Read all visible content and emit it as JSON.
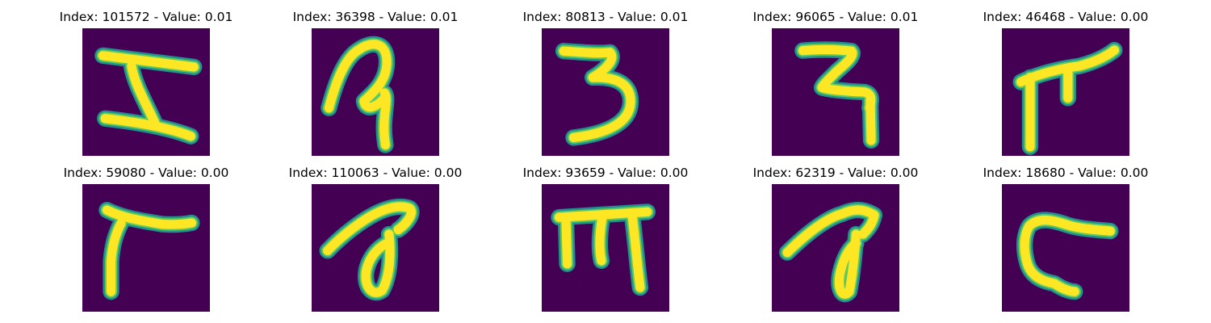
{
  "figure": {
    "panels": [
      {
        "index_label": "Index: 101572 - Value: 0.01",
        "index": 101572,
        "value": 0.01,
        "glyph": "glyph-1"
      },
      {
        "index_label": "Index: 36398 - Value: 0.01",
        "index": 36398,
        "value": 0.01,
        "glyph": "glyph-2"
      },
      {
        "index_label": "Index: 80813 - Value: 0.01",
        "index": 80813,
        "value": 0.01,
        "glyph": "glyph-3"
      },
      {
        "index_label": "Index: 96065 - Value: 0.01",
        "index": 96065,
        "value": 0.01,
        "glyph": "glyph-4"
      },
      {
        "index_label": "Index: 46468 - Value: 0.00",
        "index": 46468,
        "value": 0.0,
        "glyph": "glyph-5"
      },
      {
        "index_label": "Index: 59080 - Value: 0.00",
        "index": 59080,
        "value": 0.0,
        "glyph": "glyph-6"
      },
      {
        "index_label": "Index: 110063 - Value: 0.00",
        "index": 110063,
        "value": 0.0,
        "glyph": "glyph-7"
      },
      {
        "index_label": "Index: 93659 - Value: 0.00",
        "index": 93659,
        "value": 0.0,
        "glyph": "glyph-8"
      },
      {
        "index_label": "Index: 62319 - Value: 0.00",
        "index": 62319,
        "value": 0.0,
        "glyph": "glyph-9"
      },
      {
        "index_label": "Index: 18680 - Value: 0.00",
        "index": 18680,
        "value": 0.0,
        "glyph": "glyph-10"
      }
    ]
  },
  "colors": {
    "background_dark": "#440154",
    "stroke_outer": "#21918c",
    "stroke_mid": "#5ec962",
    "stroke_core": "#fde725"
  }
}
